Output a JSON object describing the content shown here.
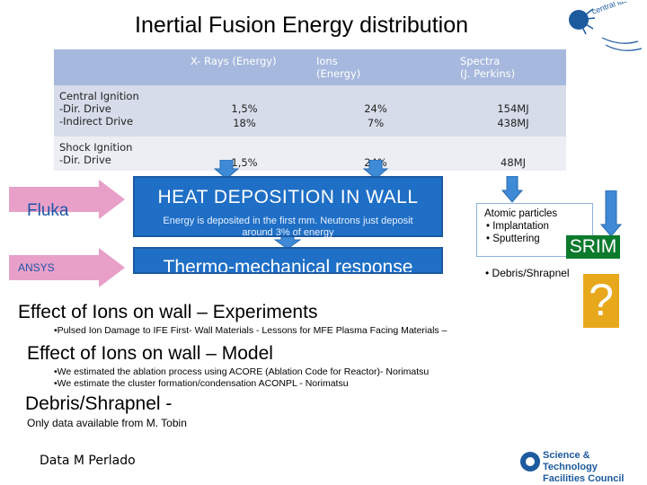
{
  "title": "Inertial Fusion Energy distribution",
  "logo": {
    "text": "central laser facility"
  },
  "table": {
    "headers": [
      "X- Rays (Energy)",
      "Ions\n(Energy)",
      "Spectra\n(J. Perkins)"
    ],
    "rows": [
      {
        "label": "Central Ignition\n-Dir. Drive\n-Indirect Drive",
        "xrays": "1,5%\n18%",
        "ions": "24%\n7%",
        "spectra": "154MJ\n438MJ"
      },
      {
        "label": "Shock Ignition\n-Dir. Drive",
        "xrays": "1,5%",
        "ions": "24%",
        "spectra": "48MJ"
      }
    ]
  },
  "fluka_label": "Fluka",
  "ansys_label": "ANSYS",
  "heat_box": {
    "title": "HEAT DEPOSITION IN WALL",
    "subtitle": "Energy is deposited in the first mm. Neutrons just deposit around 3% of energy"
  },
  "thermo_box": {
    "title": "Thermo-mechanical response"
  },
  "atomic_box": {
    "title": "Atomic particles",
    "items": [
      "Implantation",
      "Sputtering"
    ]
  },
  "debris_side": "• Debris/Shrapnel",
  "srim_label": "SRIM",
  "question_mark": "?",
  "sections": {
    "experiments_heading": "Effect of Ions on wall – Experiments",
    "experiments_bullet": "•Pulsed Ion Damage to IFE First- Wall Materials - Lessons for MFE Plasma Facing Materials –",
    "model_heading": "Effect of Ions on wall – Model",
    "model_bullets": [
      "•We estimated the ablation process using ACORE (Ablation Code for Reactor)- Norimatsu",
      "•We estimate the cluster formation/condensation ACONPL - Norimatsu"
    ],
    "debris_heading": "Debris/Shrapnel  -",
    "debris_text": "Only data available from M. Tobin"
  },
  "credit": "Data M Perlado",
  "stfc": {
    "text": "Science & Technology\nFacilities Council"
  },
  "colors": {
    "header_blue": "#a6b8dd",
    "box_blue": "#1f6fc6",
    "arrow_pink": "#e8a0c8",
    "srim_green": "#0c7a2c",
    "question_orange": "#e8a81c"
  }
}
